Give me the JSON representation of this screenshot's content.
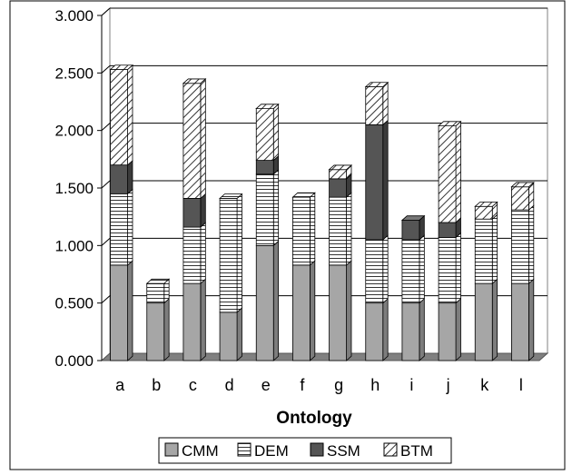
{
  "chart_data": {
    "type": "bar",
    "stacked": true,
    "style": "3d",
    "categories": [
      "a",
      "b",
      "c",
      "d",
      "e",
      "f",
      "g",
      "h",
      "i",
      "j",
      "k",
      "l"
    ],
    "series": [
      {
        "name": "CMM",
        "values": [
          0.83,
          0.5,
          0.67,
          0.42,
          1.0,
          0.83,
          0.83,
          0.5,
          0.5,
          0.5,
          0.67,
          0.67
        ]
      },
      {
        "name": "DEM",
        "values": [
          0.62,
          0.17,
          0.49,
          0.99,
          0.62,
          0.59,
          0.59,
          0.55,
          0.55,
          0.57,
          0.56,
          0.64
        ]
      },
      {
        "name": "SSM",
        "values": [
          0.25,
          0.0,
          0.25,
          0.0,
          0.12,
          0.0,
          0.16,
          1.0,
          0.17,
          0.13,
          0.0,
          0.0
        ]
      },
      {
        "name": "BTM",
        "values": [
          0.83,
          0.0,
          1.0,
          0.0,
          0.45,
          0.0,
          0.08,
          0.33,
          0.0,
          0.84,
          0.11,
          0.2
        ]
      }
    ],
    "series_colors": [
      "#a6a6a6",
      "#ffffff",
      "#555555",
      "#ffffff"
    ],
    "series_patterns": [
      "solid",
      "horizontal-lines",
      "solid",
      "diagonal-hatch"
    ],
    "xlabel": "Ontology",
    "ylabel": "",
    "ylim": [
      0,
      3
    ],
    "y_ticks": [
      "0.000",
      "0.500",
      "1.000",
      "1.500",
      "2.000",
      "2.500",
      "3.000"
    ],
    "grid": true,
    "legend_position": "bottom"
  }
}
